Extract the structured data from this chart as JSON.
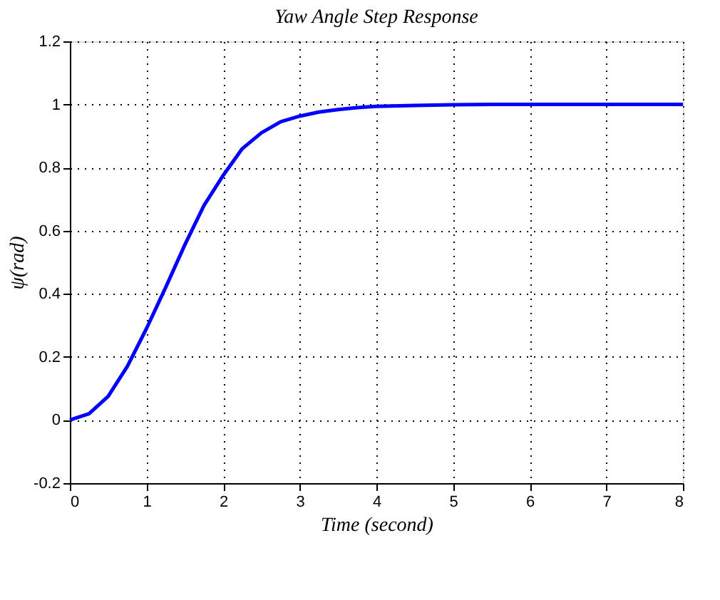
{
  "chart_data": {
    "type": "line",
    "title": "Yaw Angle Step Response",
    "xlabel": "Time (second)",
    "ylabel": "ψ(rad)",
    "x": [
      0,
      0.25,
      0.5,
      0.75,
      1,
      1.25,
      1.5,
      1.75,
      2,
      2.25,
      2.5,
      2.75,
      3,
      3.25,
      3.5,
      3.75,
      4,
      4.5,
      5,
      5.5,
      6,
      7,
      8
    ],
    "series": [
      {
        "color": "#0000ff",
        "values": [
          0,
          0.02,
          0.075,
          0.17,
          0.29,
          0.42,
          0.555,
          0.68,
          0.775,
          0.86,
          0.91,
          0.945,
          0.963,
          0.976,
          0.984,
          0.99,
          0.994,
          0.997,
          0.999,
          1,
          1,
          1,
          1
        ]
      }
    ],
    "xlim": [
      0,
      8
    ],
    "xticks": [
      0,
      1,
      2,
      3,
      4,
      5,
      6,
      7,
      8
    ],
    "ylim": [
      -0.2,
      1.2
    ],
    "yticks": [
      -0.2,
      0,
      0.2,
      0.4,
      0.6,
      0.8,
      1,
      1.2
    ],
    "grid": true,
    "legend": false,
    "marker": "none",
    "line_style": "solid"
  }
}
